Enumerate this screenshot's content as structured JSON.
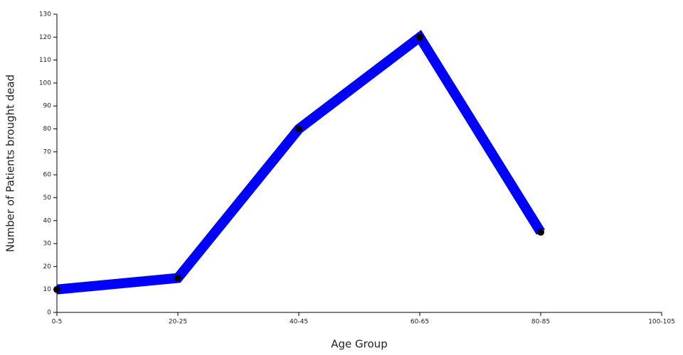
{
  "chart_data": {
    "type": "line",
    "x_label": "Age Group",
    "y_label": "Number of Patients brought dead",
    "categories": [
      "0-5",
      "20-25",
      "40-45",
      "60-65",
      "80-85",
      "100-105"
    ],
    "values": [
      10,
      15,
      80,
      120,
      35,
      null
    ],
    "color": "#0000ff",
    "marker_color": "#000000",
    "ylim": [
      0,
      130
    ],
    "yticks": [
      0,
      10,
      20,
      30,
      40,
      50,
      60,
      70,
      80,
      90,
      100,
      110,
      120,
      130
    ]
  }
}
